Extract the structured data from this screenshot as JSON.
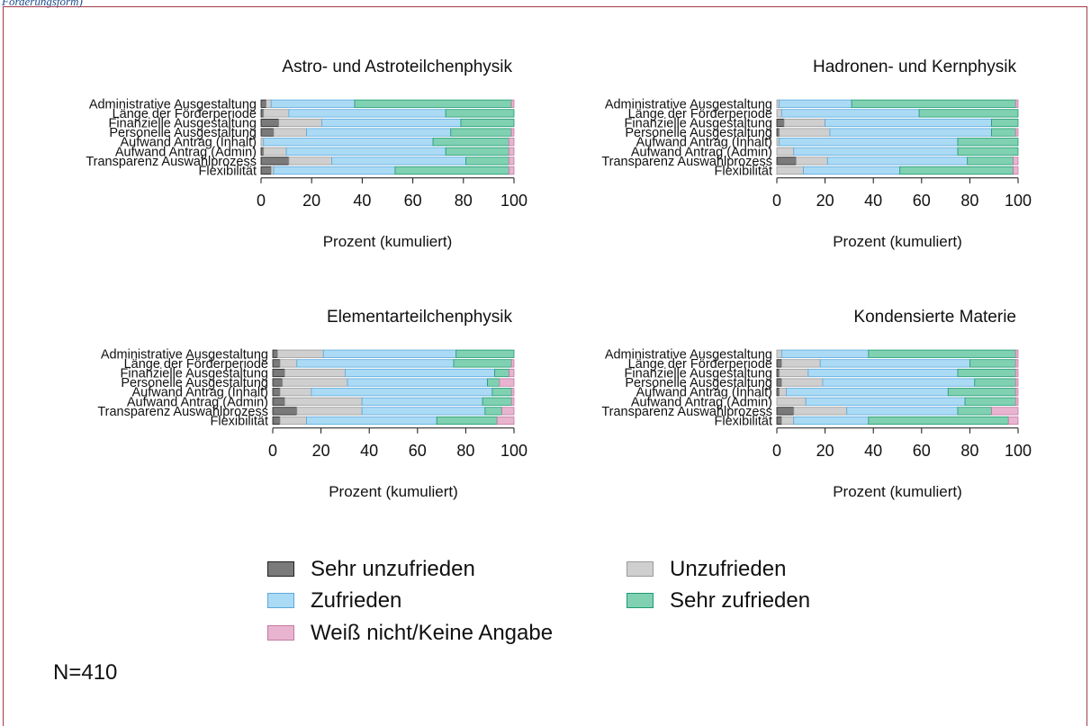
{
  "caption": "Förderungsform)",
  "note": "N=410",
  "colors": {
    "sehr_unzufrieden": "#7a7a7a",
    "unzufrieden": "#cfcfcf",
    "zufrieden": "#abdaf5",
    "sehr_zufrieden": "#7fd1b2",
    "weiss_nicht": "#e8b4cf"
  },
  "legend": {
    "items": [
      {
        "key": "sehr_unzufrieden",
        "label": "Sehr unzufrieden"
      },
      {
        "key": "unzufrieden",
        "label": "Unzufrieden"
      },
      {
        "key": "zufrieden",
        "label": "Zufrieden"
      },
      {
        "key": "sehr_zufrieden",
        "label": "Sehr zufrieden"
      },
      {
        "key": "weiss_nicht",
        "label": "Weiß nicht/Keine Angabe"
      }
    ]
  },
  "chart_data": [
    {
      "type": "bar",
      "orientation": "horizontal-stacked",
      "title": "Astro- und Astroteilchenphysik",
      "xlabel": "Prozent (kumuliert)",
      "xlim": [
        0,
        100
      ],
      "xticks": [
        0,
        20,
        40,
        60,
        80,
        100
      ],
      "categories": [
        "Administrative Ausgestaltung",
        "Länge der Förderperiode",
        "Finanzielle Ausgestaltung",
        "Personelle Ausgestaltung",
        "Aufwand Antrag (Inhalt)",
        "Aufwand Antrag (Admin)",
        "Transparenz Auswahlprozess",
        "Flexibilität"
      ],
      "series": [
        {
          "name": "Sehr unzufrieden",
          "values": [
            2,
            1,
            7,
            5,
            0,
            1,
            11,
            4
          ]
        },
        {
          "name": "Unzufrieden",
          "values": [
            2,
            10,
            17,
            13,
            1,
            9,
            17,
            1
          ]
        },
        {
          "name": "Zufrieden",
          "values": [
            33,
            62,
            55,
            57,
            67,
            63,
            53,
            48
          ]
        },
        {
          "name": "Sehr zufrieden",
          "values": [
            62,
            27,
            21,
            24,
            30,
            25,
            17,
            45
          ]
        },
        {
          "name": "Weiß nicht/Keine Angabe",
          "values": [
            1,
            0,
            0,
            1,
            2,
            2,
            2,
            2
          ]
        }
      ]
    },
    {
      "type": "bar",
      "orientation": "horizontal-stacked",
      "title": "Hadronen- und Kernphysik",
      "xlabel": "Prozent (kumuliert)",
      "xlim": [
        0,
        100
      ],
      "xticks": [
        0,
        20,
        40,
        60,
        80,
        100
      ],
      "categories": [
        "Administrative Ausgestaltung",
        "Länge der Förderperiode",
        "Finanzielle Ausgestaltung",
        "Personelle Ausgestaltung",
        "Aufwand Antrag (Inhalt)",
        "Aufwand Antrag (Admin)",
        "Transparenz Auswahlprozess",
        "Flexibilität"
      ],
      "series": [
        {
          "name": "Sehr unzufrieden",
          "values": [
            0,
            0,
            3,
            1,
            0,
            0,
            8,
            0
          ]
        },
        {
          "name": "Unzufrieden",
          "values": [
            1,
            2,
            17,
            21,
            1,
            7,
            13,
            11
          ]
        },
        {
          "name": "Zufrieden",
          "values": [
            30,
            57,
            69,
            67,
            74,
            68,
            58,
            40
          ]
        },
        {
          "name": "Sehr zufrieden",
          "values": [
            68,
            41,
            11,
            10,
            25,
            25,
            19,
            47
          ]
        },
        {
          "name": "Weiß nicht/Keine Angabe",
          "values": [
            1,
            0,
            0,
            1,
            0,
            0,
            2,
            2
          ]
        }
      ]
    },
    {
      "type": "bar",
      "orientation": "horizontal-stacked",
      "title": "Elementarteilchenphysik",
      "xlabel": "Prozent (kumuliert)",
      "xlim": [
        0,
        100
      ],
      "xticks": [
        0,
        20,
        40,
        60,
        80,
        100
      ],
      "categories": [
        "Administrative Ausgestaltung",
        "Länge der Förderperiode",
        "Finanzielle Ausgestaltung",
        "Personelle Ausgestaltung",
        "Aufwand Antrag (Inhalt)",
        "Aufwand Antrag (Admin)",
        "Transparenz Auswahlprozess",
        "Flexibilität"
      ],
      "series": [
        {
          "name": "Sehr unzufrieden",
          "values": [
            2,
            3,
            5,
            4,
            3,
            5,
            10,
            3
          ]
        },
        {
          "name": "Unzufrieden",
          "values": [
            19,
            7,
            25,
            27,
            13,
            32,
            27,
            11
          ]
        },
        {
          "name": "Zufrieden",
          "values": [
            55,
            65,
            62,
            58,
            75,
            50,
            51,
            54
          ]
        },
        {
          "name": "Sehr zufrieden",
          "values": [
            24,
            24,
            6,
            5,
            8,
            12,
            7,
            25
          ]
        },
        {
          "name": "Weiß nicht/Keine Angabe",
          "values": [
            0,
            1,
            2,
            6,
            1,
            1,
            5,
            7
          ]
        }
      ]
    },
    {
      "type": "bar",
      "orientation": "horizontal-stacked",
      "title": "Kondensierte Materie",
      "xlabel": "Prozent (kumuliert)",
      "xlim": [
        0,
        100
      ],
      "xticks": [
        0,
        20,
        40,
        60,
        80,
        100
      ],
      "categories": [
        "Administrative Ausgestaltung",
        "Länge der Förderperiode",
        "Finanzielle Ausgestaltung",
        "Personelle Ausgestaltung",
        "Aufwand Antrag (Inhalt)",
        "Aufwand Antrag (Admin)",
        "Transparenz Auswahlprozess",
        "Flexibilität"
      ],
      "series": [
        {
          "name": "Sehr unzufrieden",
          "values": [
            0,
            2,
            1,
            2,
            1,
            0,
            7,
            2
          ]
        },
        {
          "name": "Unzufrieden",
          "values": [
            2,
            16,
            12,
            17,
            3,
            12,
            22,
            5
          ]
        },
        {
          "name": "Zufrieden",
          "values": [
            36,
            62,
            62,
            63,
            67,
            66,
            46,
            31
          ]
        },
        {
          "name": "Sehr zufrieden",
          "values": [
            61,
            19,
            24,
            17,
            28,
            21,
            14,
            58
          ]
        },
        {
          "name": "Weiß nicht/Keine Angabe",
          "values": [
            1,
            1,
            1,
            1,
            1,
            1,
            11,
            4
          ]
        }
      ]
    }
  ]
}
